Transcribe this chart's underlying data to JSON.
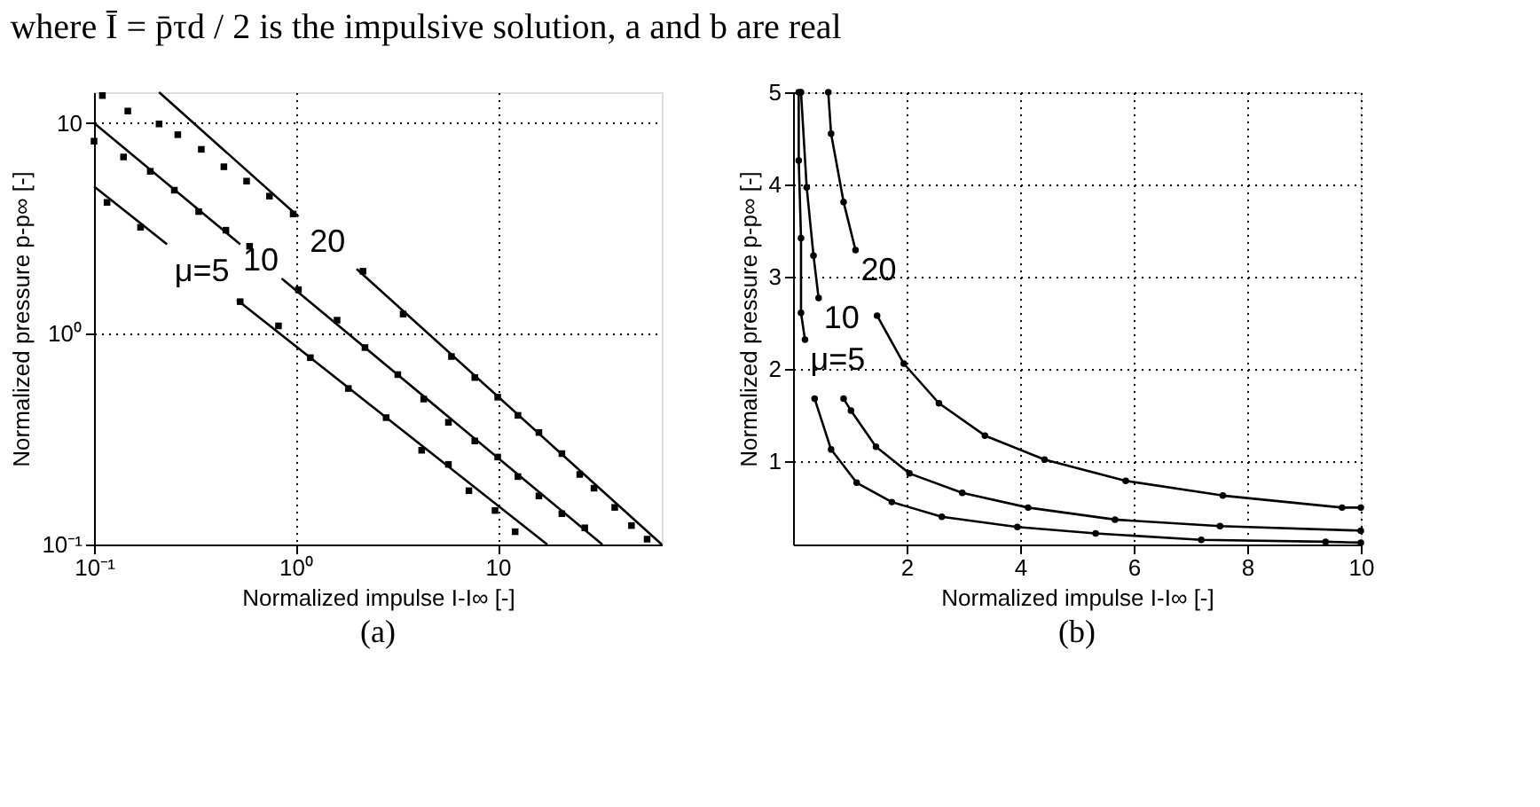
{
  "chart_data": [
    {
      "type": "line",
      "xlabel": "Normalized impulse I-I∞ [-]",
      "ylabel": "Normalized pressure p-p∞ [-]",
      "log": "xy",
      "grid": true,
      "marker": "square",
      "line_style": "solid",
      "xlim": [
        0.1,
        65
      ],
      "ylim": [
        0.1,
        14
      ],
      "xticks": [
        {
          "value": 0.1,
          "label": "10⁻¹"
        },
        {
          "value": 1,
          "label": "10⁰"
        },
        10
      ],
      "yticks": [
        {
          "value": 0.1,
          "label": "10⁻¹"
        },
        {
          "value": 1,
          "label": "10⁰"
        },
        10
      ],
      "series": [
        {
          "type": "line",
          "name": "20",
          "marker": "none",
          "color": "#000000",
          "x": [
            0.21,
            1.03,
            null,
            2.0,
            65
          ],
          "values": [
            14,
            3.6,
            null,
            2.03,
            0.1
          ]
        },
        {
          "type": "line",
          "name": "10",
          "marker": "none",
          "color": "#000000",
          "x": [
            0.1,
            0.53,
            null,
            0.85,
            33
          ],
          "values": [
            10,
            2.66,
            null,
            1.83,
            0.1
          ]
        },
        {
          "type": "line",
          "name": "μ=5",
          "marker": "none",
          "color": "#000000",
          "x": [
            0.1,
            0.23,
            null,
            0.51,
            17.6
          ],
          "values": [
            5.0,
            2.66,
            null,
            1.45,
            0.1
          ]
        },
        {
          "type": "scatter",
          "color": "#000000",
          "x": [
            0.11,
            0.147,
            0.21,
            0.26,
            0.34,
            0.44,
            0.57,
            0.74,
            0.97,
            2.15,
            3.4,
            5.9,
            7.7,
            10,
            12.6,
            16,
            20.8,
            25.5,
            30,
            38,
            46,
            55
          ],
          "values": [
            13.5,
            11.4,
            9.9,
            8.8,
            7.5,
            6.2,
            5.3,
            4.5,
            3.7,
            1.98,
            1.24,
            0.78,
            0.62,
            0.5,
            0.41,
            0.34,
            0.27,
            0.215,
            0.185,
            0.15,
            0.123,
            0.106
          ]
        },
        {
          "type": "scatter",
          "color": "#000000",
          "x": [
            0.1,
            0.14,
            0.19,
            0.25,
            0.33,
            0.45,
            0.59,
            1.03,
            1.6,
            2.2,
            3.2,
            4.3,
            5.7,
            7.7,
            10,
            12.6,
            16,
            20.8,
            27
          ],
          "values": [
            8.2,
            6.9,
            5.9,
            4.8,
            3.8,
            3.1,
            2.6,
            1.62,
            1.16,
            0.86,
            0.64,
            0.49,
            0.38,
            0.31,
            0.26,
            0.21,
            0.17,
            0.14,
            0.12
          ]
        },
        {
          "type": "scatter",
          "color": "#000000",
          "x": [
            0.116,
            0.17,
            0.53,
            0.82,
            1.18,
            1.82,
            2.8,
            4.2,
            5.7,
            7.2,
            9.7,
            12.2
          ],
          "values": [
            4.2,
            3.2,
            1.42,
            1.09,
            0.77,
            0.55,
            0.4,
            0.28,
            0.24,
            0.18,
            0.145,
            0.115
          ]
        }
      ],
      "annotations": [
        "where Ī = p̄τd / 2 is the impulsive solution, a and b are real",
        "(a)"
      ]
    },
    {
      "type": "line",
      "xlabel": "Normalized impulse I-I∞ [-]",
      "ylabel": "Normalized pressure p-p∞ [-]",
      "grid": true,
      "marker": "circle",
      "line_style": "solid",
      "xlim": [
        0,
        10
      ],
      "ylim": [
        0.1,
        5
      ],
      "xticks": [
        2,
        4,
        6,
        8,
        10
      ],
      "yticks": [
        1,
        2,
        3,
        4,
        5
      ],
      "series": [
        {
          "name": "20",
          "color": "#000000",
          "x": [
            0.62,
            0.67,
            0.89,
            1.1,
            null,
            1.48,
            1.95,
            2.57,
            3.38,
            4.43,
            5.86,
            7.57,
            9.67,
            10
          ],
          "values": [
            5.0,
            4.55,
            3.81,
            3.29,
            null,
            2.58,
            2.06,
            1.63,
            1.28,
            1.02,
            0.79,
            0.63,
            0.5,
            0.5
          ]
        },
        {
          "name": "10",
          "color": "#000000",
          "x": [
            0.14,
            0.24,
            0.36,
            0.45,
            null,
            0.89,
            1.02,
            1.46,
            2.05,
            2.98,
            4.14,
            5.67,
            7.52,
            10
          ],
          "values": [
            5.0,
            3.97,
            3.23,
            2.77,
            null,
            1.68,
            1.55,
            1.16,
            0.87,
            0.66,
            0.5,
            0.37,
            0.3,
            0.25
          ]
        },
        {
          "name": "μ=5",
          "color": "#000000",
          "x": [
            0.1,
            0.1,
            0.14,
            0.14,
            0.21,
            null,
            0.38,
            0.67,
            1.12,
            1.74,
            2.62,
            3.95,
            5.33,
            7.19,
            9.38,
            10
          ],
          "values": [
            5.0,
            4.26,
            3.42,
            2.61,
            2.32,
            null,
            1.68,
            1.13,
            0.77,
            0.56,
            0.4,
            0.29,
            0.22,
            0.15,
            0.13,
            0.12
          ]
        }
      ],
      "annotations": [
        "(b)"
      ]
    }
  ]
}
